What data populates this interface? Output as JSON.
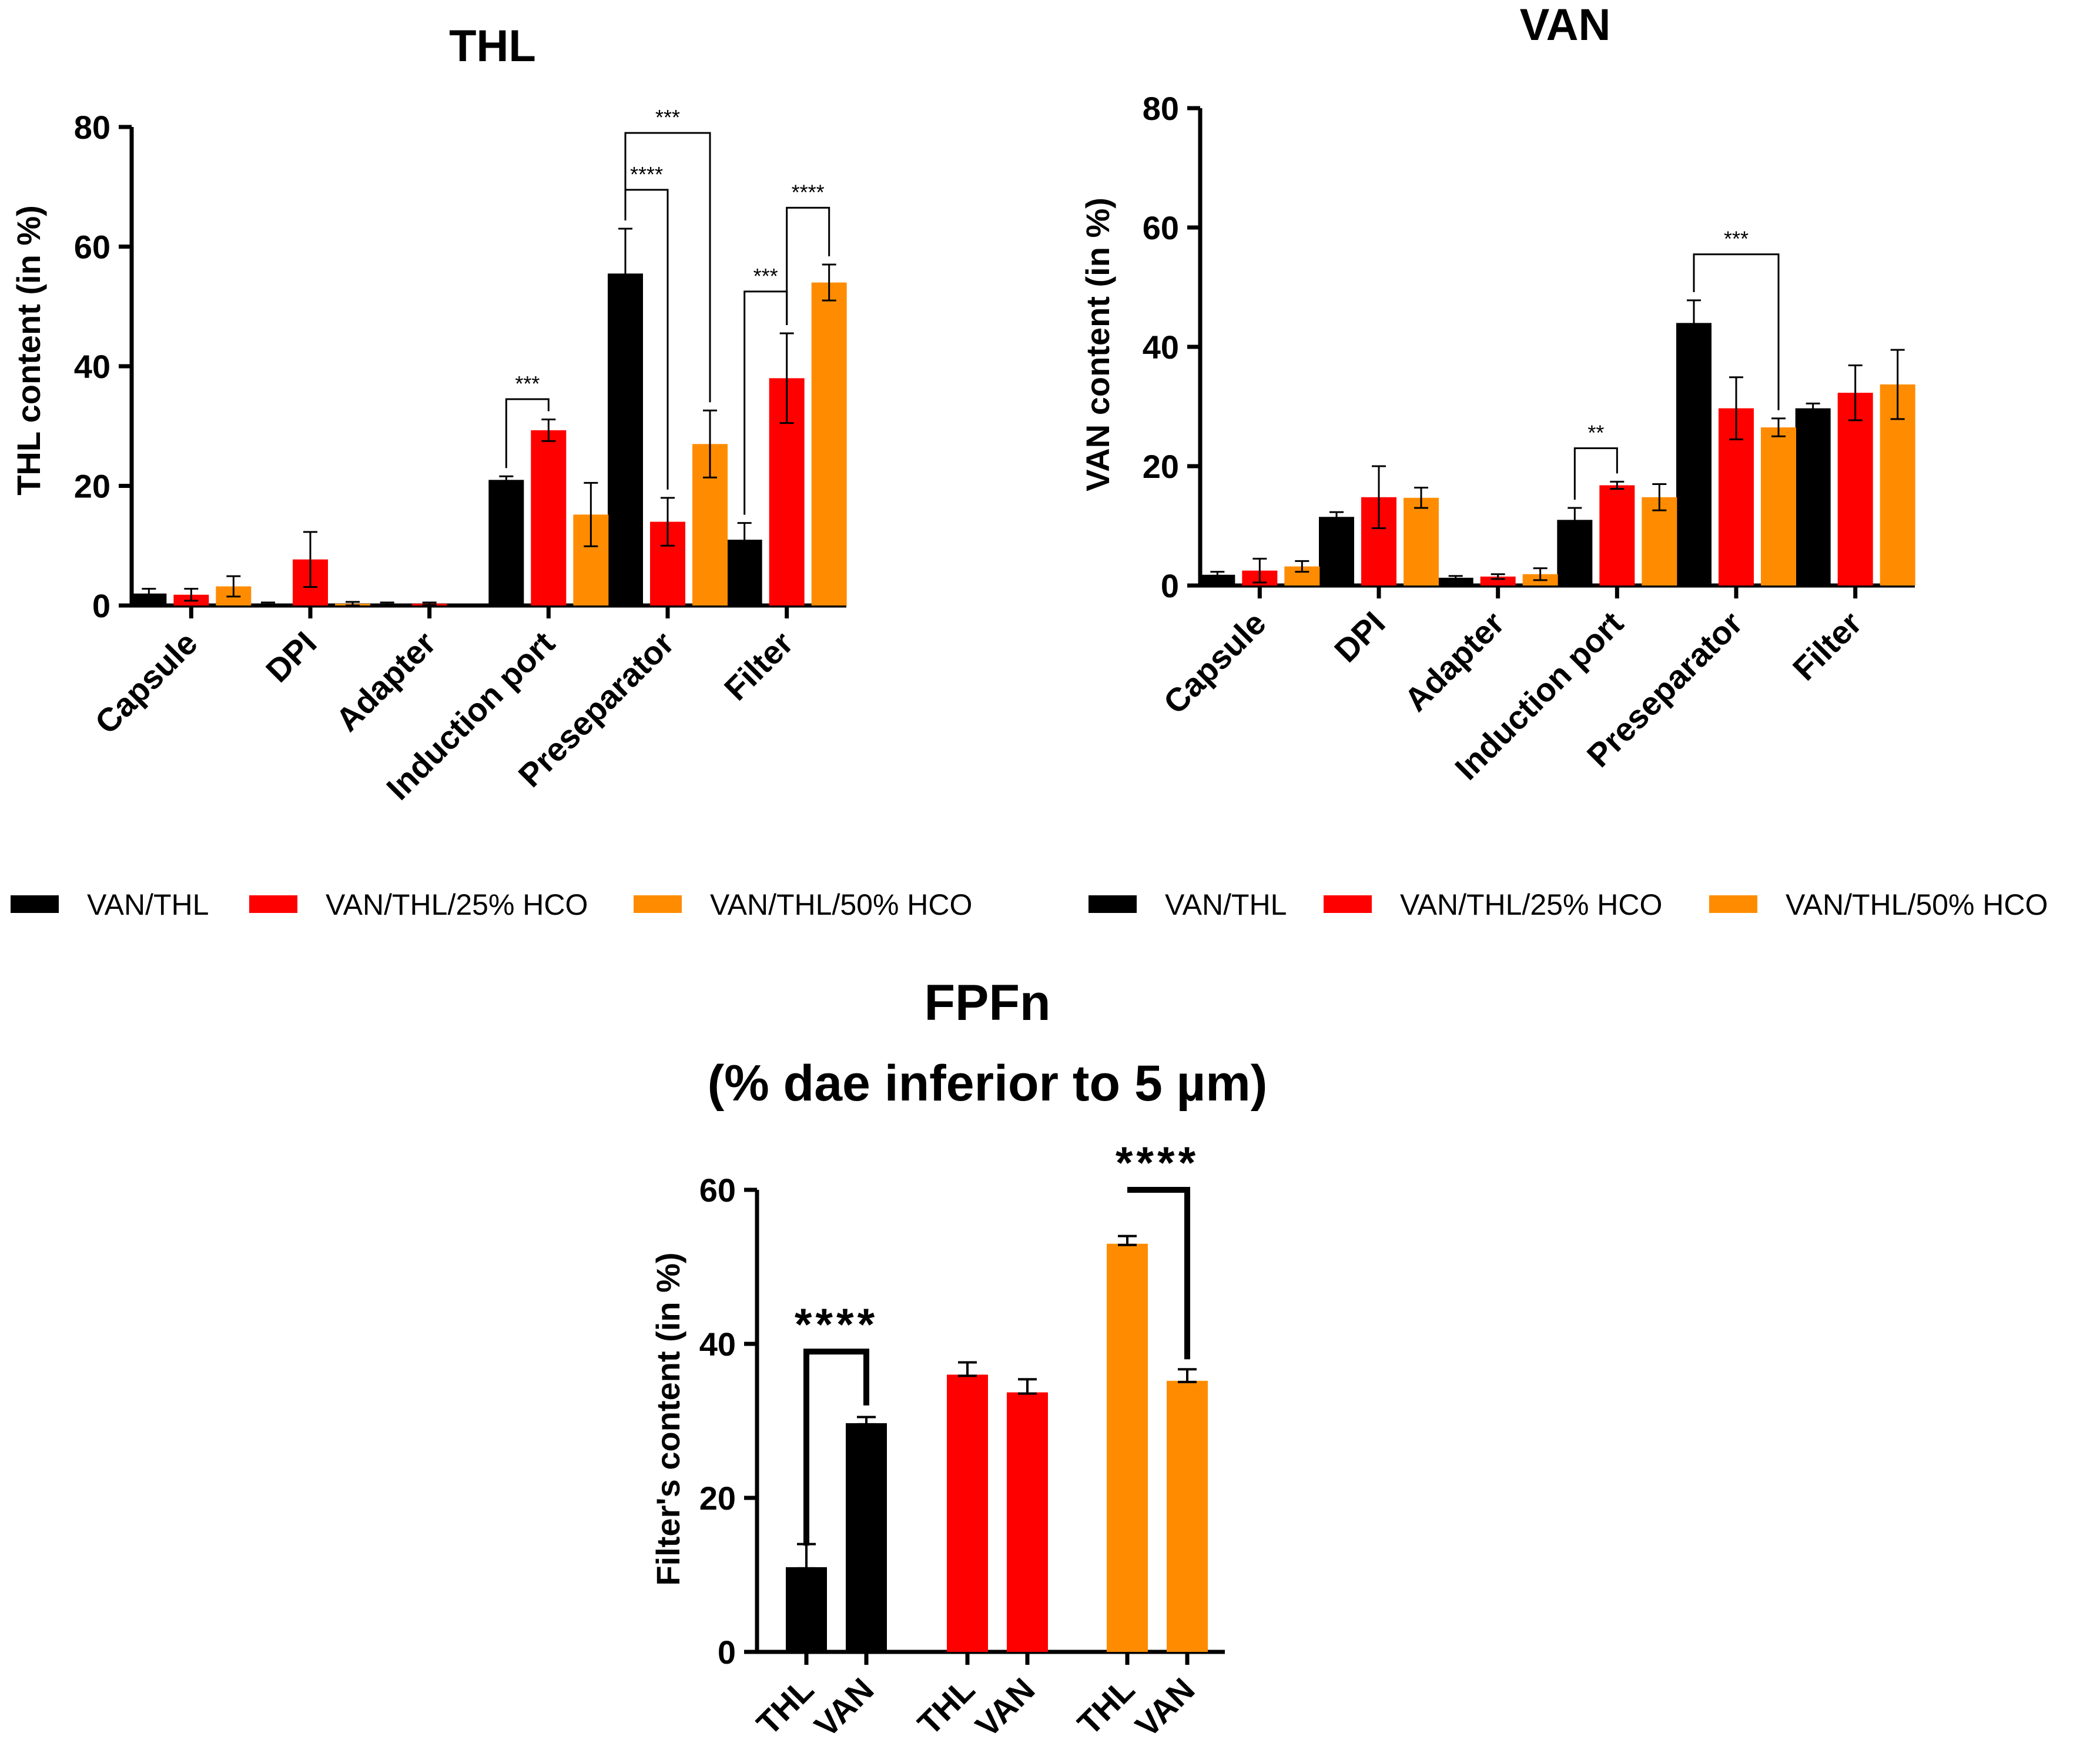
{
  "chart_data": [
    {
      "id": "thl",
      "type": "bar",
      "title": "THL",
      "xlabel": "",
      "ylabel": "THL content (in %)",
      "ylim": [
        0,
        80
      ],
      "yticks": [
        "0",
        "20",
        "40",
        "60",
        "80"
      ],
      "categories": [
        "Capsule",
        "DPI",
        "Adapter",
        "Induction port",
        "Preseparator",
        "Filter"
      ],
      "series": [
        {
          "name": "VAN/THL",
          "color": "#000000",
          "values": [
            2.0,
            0.3,
            0.3,
            21.0,
            55.5,
            11.0
          ],
          "errors": [
            0.8,
            0.2,
            0.2,
            0.6,
            7.5,
            2.8
          ]
        },
        {
          "name": "VAN/THL/25% HCO",
          "color": "#ff0000",
          "values": [
            1.8,
            7.7,
            0.3,
            29.3,
            14.0,
            38.0
          ],
          "errors": [
            1.0,
            4.6,
            0.2,
            1.8,
            4.0,
            7.5
          ]
        },
        {
          "name": "VAN/THL/50% HCO",
          "color": "#ff8c00",
          "values": [
            3.2,
            0.3,
            0.0,
            15.2,
            27.0,
            54.0
          ],
          "errors": [
            1.7,
            0.3,
            0.0,
            5.3,
            5.6,
            3.0
          ]
        }
      ],
      "significance": [
        {
          "cat": 3,
          "from": 0,
          "to": 1,
          "label": "***"
        },
        {
          "cat": 4,
          "from": 0,
          "to": 2,
          "label": "***"
        },
        {
          "cat": 4,
          "from": 0,
          "to": 1,
          "label": "****"
        },
        {
          "cat": 5,
          "from": 1,
          "to": 2,
          "label": "****"
        },
        {
          "cat": 5,
          "from": 0,
          "to": 1,
          "label": "***"
        }
      ],
      "legend": [
        "VAN/THL",
        "VAN/THL/25% HCO",
        "VAN/THL/50% HCO"
      ]
    },
    {
      "id": "van",
      "type": "bar",
      "title": "VAN",
      "xlabel": "",
      "ylabel": "VAN content (in %)",
      "ylim": [
        0,
        80
      ],
      "yticks": [
        "0",
        "20",
        "40",
        "60",
        "80"
      ],
      "categories": [
        "Capsule",
        "DPI",
        "Adapter",
        "Induction port",
        "Preseparator",
        "Filter"
      ],
      "series": [
        {
          "name": "VAN/THL",
          "color": "#000000",
          "values": [
            1.8,
            11.5,
            1.3,
            11.0,
            44.0,
            29.7
          ],
          "errors": [
            0.5,
            0.8,
            0.3,
            2.0,
            3.8,
            0.8
          ]
        },
        {
          "name": "VAN/THL/25% HCO",
          "color": "#ff0000",
          "values": [
            2.5,
            14.8,
            1.5,
            16.8,
            29.7,
            32.3
          ],
          "errors": [
            2.0,
            5.2,
            0.4,
            0.6,
            5.2,
            4.6
          ]
        },
        {
          "name": "VAN/THL/50% HCO",
          "color": "#ff8c00",
          "values": [
            3.2,
            14.7,
            1.9,
            14.8,
            26.5,
            33.7
          ],
          "errors": [
            0.9,
            1.7,
            1.0,
            2.2,
            1.5,
            5.8
          ]
        }
      ],
      "significance": [
        {
          "cat": 3,
          "from": 0,
          "to": 1,
          "label": "**"
        },
        {
          "cat": 4,
          "from": 0,
          "to": 2,
          "label": "***"
        }
      ],
      "legend": [
        "VAN/THL",
        "VAN/THL/25% HCO",
        "VAN/THL/50% HCO"
      ]
    },
    {
      "id": "fpfn",
      "type": "bar",
      "title": "FPFn",
      "subtitle": "(% dae inferior to 5 µm)",
      "xlabel": "",
      "ylabel": "Filter's content (in %)",
      "ylim": [
        0,
        60
      ],
      "yticks": [
        "0",
        "20",
        "40",
        "60"
      ],
      "groups": [
        {
          "color": "#000000",
          "labels": [
            "THL",
            "VAN"
          ],
          "values": [
            11.0,
            29.7
          ],
          "errors": [
            3.0,
            0.8
          ]
        },
        {
          "color": "#ff0000",
          "labels": [
            "THL",
            "VAN"
          ],
          "values": [
            36.0,
            33.7
          ],
          "errors": [
            1.6,
            1.7
          ]
        },
        {
          "color": "#ff8c00",
          "labels": [
            "THL",
            "VAN"
          ],
          "values": [
            53.0,
            35.2
          ],
          "errors": [
            1.0,
            1.5
          ]
        }
      ],
      "significance": [
        {
          "group": 0,
          "label": "****"
        },
        {
          "group": 2,
          "label": "****"
        }
      ]
    }
  ]
}
